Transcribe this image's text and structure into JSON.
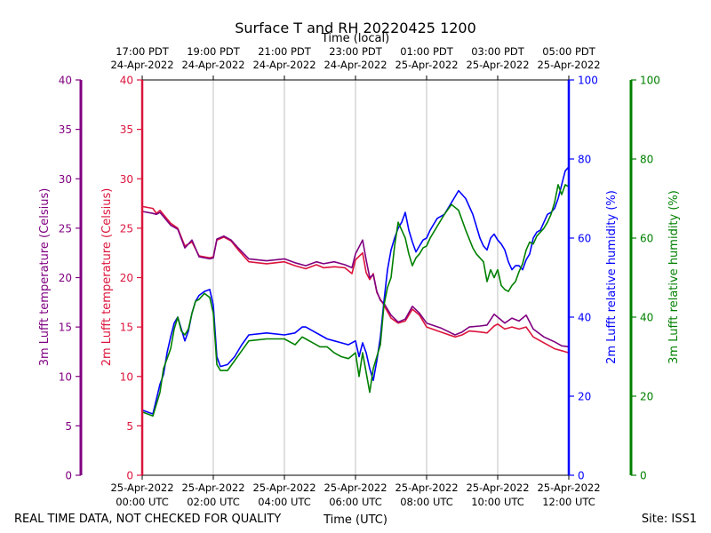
{
  "chart_data": {
    "type": "line",
    "title": "Surface T and RH 20220425 1200",
    "top_axis_title": "Time (local)",
    "xlabel": "Time (UTC)",
    "footer_left": "REAL TIME DATA, NOT CHECKED FOR QUALITY",
    "footer_right": "Site: ISS1",
    "x_unit": "hours since 25-Apr-2022 00:00 UTC",
    "xlim": [
      0,
      12
    ],
    "ticks_utc": [
      {
        "h": 0,
        "l1": "25-Apr-2022",
        "l2": "00:00 UTC"
      },
      {
        "h": 2,
        "l1": "25-Apr-2022",
        "l2": "02:00 UTC"
      },
      {
        "h": 4,
        "l1": "25-Apr-2022",
        "l2": "04:00 UTC"
      },
      {
        "h": 6,
        "l1": "25-Apr-2022",
        "l2": "06:00 UTC"
      },
      {
        "h": 8,
        "l1": "25-Apr-2022",
        "l2": "08:00 UTC"
      },
      {
        "h": 10,
        "l1": "25-Apr-2022",
        "l2": "10:00 UTC"
      },
      {
        "h": 12,
        "l1": "25-Apr-2022",
        "l2": "12:00 UTC"
      }
    ],
    "ticks_local": [
      {
        "h": 0,
        "l1": "17:00 PDT",
        "l2": "24-Apr-2022"
      },
      {
        "h": 2,
        "l1": "19:00 PDT",
        "l2": "24-Apr-2022"
      },
      {
        "h": 4,
        "l1": "21:00 PDT",
        "l2": "24-Apr-2022"
      },
      {
        "h": 6,
        "l1": "23:00 PDT",
        "l2": "24-Apr-2022"
      },
      {
        "h": 8,
        "l1": "01:00 PDT",
        "l2": "25-Apr-2022"
      },
      {
        "h": 10,
        "l1": "03:00 PDT",
        "l2": "25-Apr-2022"
      },
      {
        "h": 12,
        "l1": "05:00 PDT",
        "l2": "25-Apr-2022"
      }
    ],
    "axes": {
      "t3m": {
        "label": "3m Lufft temperature (Celsius)",
        "ylim": [
          0,
          40
        ],
        "ticks": [
          0,
          5,
          10,
          15,
          20,
          25,
          30,
          35,
          40
        ],
        "color": "#800080"
      },
      "t2m": {
        "label": "2m Lufft temperature (Celsius)",
        "ylim": [
          0,
          40
        ],
        "ticks": [
          0,
          5,
          10,
          15,
          20,
          25,
          30,
          35,
          40
        ],
        "color": "#dc143c"
      },
      "rh2m": {
        "label": "2m Lufft relative humidity (%)",
        "ylim": [
          0,
          100
        ],
        "ticks": [
          0,
          20,
          40,
          60,
          80,
          100
        ],
        "color": "#0000ff"
      },
      "rh3m": {
        "label": "3m Lufft relative humidity (%)",
        "ylim": [
          0,
          100
        ],
        "ticks": [
          0,
          20,
          40,
          60,
          80,
          100
        ],
        "color": "#008000"
      }
    },
    "series": [
      {
        "name": "2m Lufft temperature",
        "axis": "t2m",
        "color": "#dc143c",
        "x": [
          0,
          0.3,
          0.4,
          0.5,
          0.8,
          1.0,
          1.2,
          1.4,
          1.6,
          1.9,
          2.0,
          2.1,
          2.3,
          2.5,
          2.7,
          3.0,
          3.5,
          4.0,
          4.3,
          4.6,
          4.9,
          5.1,
          5.4,
          5.7,
          5.9,
          6.0,
          6.2,
          6.3,
          6.4,
          6.5,
          6.6,
          6.7,
          6.8,
          7.0,
          7.2,
          7.4,
          7.6,
          7.8,
          8.0,
          8.4,
          8.8,
          9.0,
          9.2,
          9.5,
          9.7,
          9.9,
          10.0,
          10.2,
          10.4,
          10.6,
          10.8,
          11.0,
          11.3,
          11.6,
          11.8,
          12.0
        ],
        "values": [
          27.2,
          27.0,
          26.5,
          26.8,
          25.5,
          25.0,
          23.2,
          23.6,
          22.2,
          22.0,
          22.1,
          23.8,
          24.1,
          23.7,
          22.8,
          21.6,
          21.4,
          21.6,
          21.2,
          20.9,
          21.3,
          21.0,
          21.1,
          21.0,
          20.4,
          21.8,
          22.5,
          20.5,
          19.8,
          20.4,
          18.5,
          17.8,
          17.2,
          15.9,
          15.4,
          15.6,
          16.8,
          16.2,
          15.0,
          14.5,
          14.0,
          14.2,
          14.6,
          14.5,
          14.4,
          15.1,
          15.3,
          14.8,
          15.0,
          14.8,
          15.0,
          14.0,
          13.4,
          12.8,
          12.6,
          12.4
        ]
      },
      {
        "name": "3m Lufft temperature",
        "axis": "t3m",
        "color": "#800080",
        "x": [
          0,
          0.3,
          0.4,
          0.5,
          0.8,
          1.0,
          1.2,
          1.4,
          1.6,
          1.9,
          2.0,
          2.1,
          2.3,
          2.5,
          2.7,
          3.0,
          3.5,
          4.0,
          4.3,
          4.6,
          4.9,
          5.1,
          5.4,
          5.7,
          5.9,
          6.0,
          6.2,
          6.3,
          6.4,
          6.5,
          6.6,
          6.7,
          6.8,
          7.0,
          7.2,
          7.4,
          7.6,
          7.8,
          8.0,
          8.4,
          8.8,
          9.0,
          9.2,
          9.5,
          9.7,
          9.9,
          10.0,
          10.2,
          10.4,
          10.6,
          10.8,
          11.0,
          11.3,
          11.6,
          11.8,
          12.0
        ],
        "values": [
          26.7,
          26.5,
          26.4,
          26.6,
          25.3,
          24.9,
          23.0,
          23.8,
          22.1,
          21.9,
          22.0,
          23.9,
          24.2,
          23.8,
          23.0,
          21.9,
          21.7,
          21.9,
          21.5,
          21.2,
          21.6,
          21.4,
          21.6,
          21.3,
          21.0,
          22.4,
          23.8,
          21.8,
          20.0,
          20.3,
          18.6,
          17.7,
          17.4,
          16.2,
          15.5,
          15.8,
          17.1,
          16.4,
          15.4,
          14.9,
          14.2,
          14.5,
          15.0,
          15.1,
          15.2,
          16.3,
          16.0,
          15.4,
          15.9,
          15.6,
          16.2,
          14.8,
          14.0,
          13.5,
          13.1,
          13.0
        ]
      },
      {
        "name": "2m Lufft relative humidity",
        "axis": "rh2m",
        "color": "#0000ff",
        "x": [
          0,
          0.3,
          0.5,
          0.6,
          0.7,
          0.8,
          0.9,
          1.0,
          1.1,
          1.2,
          1.3,
          1.4,
          1.5,
          1.6,
          1.75,
          1.9,
          2.0,
          2.1,
          2.2,
          2.4,
          2.6,
          2.8,
          3.0,
          3.5,
          4.0,
          4.3,
          4.5,
          4.6,
          4.8,
          5.0,
          5.2,
          5.4,
          5.6,
          5.8,
          6.0,
          6.1,
          6.2,
          6.3,
          6.4,
          6.5,
          6.6,
          6.7,
          6.8,
          6.9,
          7.0,
          7.1,
          7.2,
          7.3,
          7.4,
          7.5,
          7.6,
          7.7,
          7.8,
          7.9,
          8.0,
          8.1,
          8.2,
          8.3,
          8.5,
          8.7,
          8.9,
          9.1,
          9.3,
          9.4,
          9.5,
          9.6,
          9.7,
          9.8,
          9.9,
          10.0,
          10.1,
          10.2,
          10.3,
          10.4,
          10.5,
          10.6,
          10.7,
          10.8,
          10.9,
          11.0,
          11.1,
          11.2,
          11.3,
          11.4,
          11.5,
          11.6,
          11.7,
          11.8,
          11.9,
          12.0
        ],
        "values": [
          16.5,
          15.5,
          23.0,
          25.5,
          31.0,
          35.0,
          38.5,
          40.0,
          37.0,
          34.0,
          36.5,
          41.0,
          44.0,
          45.5,
          46.5,
          47.0,
          43.0,
          30.0,
          27.5,
          28.0,
          30.0,
          33.0,
          35.5,
          36.0,
          35.5,
          36.0,
          37.5,
          37.5,
          36.5,
          35.5,
          34.5,
          34.0,
          33.5,
          33.0,
          34.0,
          30.0,
          33.5,
          31.0,
          27.0,
          24.0,
          29.0,
          35.0,
          44.0,
          52.0,
          57.0,
          60.0,
          62.5,
          64.0,
          66.5,
          62.0,
          59.0,
          56.5,
          58.0,
          59.5,
          60.0,
          62.0,
          63.5,
          65.0,
          66.0,
          69.0,
          72.0,
          70.0,
          66.0,
          63.0,
          60.0,
          58.0,
          57.0,
          60.0,
          61.0,
          59.5,
          58.5,
          57.0,
          54.0,
          52.0,
          53.0,
          53.0,
          52.0,
          54.5,
          56.0,
          60.0,
          61.5,
          62.0,
          64.0,
          66.0,
          66.5,
          67.5,
          70.0,
          73.5,
          77.0,
          78.0
        ]
      },
      {
        "name": "3m Lufft relative humidity",
        "axis": "rh3m",
        "color": "#008000",
        "x": [
          0,
          0.3,
          0.5,
          0.6,
          0.7,
          0.8,
          0.9,
          1.0,
          1.1,
          1.2,
          1.3,
          1.4,
          1.5,
          1.6,
          1.75,
          1.9,
          2.0,
          2.1,
          2.2,
          2.4,
          2.6,
          2.8,
          3.0,
          3.5,
          4.0,
          4.3,
          4.5,
          4.6,
          4.8,
          5.0,
          5.2,
          5.4,
          5.6,
          5.8,
          6.0,
          6.1,
          6.2,
          6.3,
          6.4,
          6.5,
          6.6,
          6.7,
          6.8,
          6.9,
          7.0,
          7.1,
          7.2,
          7.3,
          7.4,
          7.5,
          7.6,
          7.7,
          7.8,
          7.9,
          8.0,
          8.1,
          8.2,
          8.3,
          8.5,
          8.7,
          8.9,
          9.1,
          9.3,
          9.4,
          9.5,
          9.6,
          9.7,
          9.8,
          9.9,
          10.0,
          10.1,
          10.2,
          10.3,
          10.4,
          10.5,
          10.6,
          10.7,
          10.8,
          10.9,
          11.0,
          11.1,
          11.2,
          11.3,
          11.4,
          11.5,
          11.6,
          11.7,
          11.8,
          11.9,
          12.0
        ],
        "values": [
          16.0,
          15.0,
          21.0,
          27.0,
          29.5,
          32.0,
          37.0,
          40.0,
          36.5,
          35.5,
          37.0,
          41.0,
          44.0,
          44.5,
          46.0,
          45.0,
          41.0,
          28.0,
          26.5,
          26.5,
          29.0,
          31.5,
          34.0,
          34.5,
          34.5,
          33.0,
          35.0,
          34.5,
          33.5,
          32.5,
          32.5,
          31.0,
          30.0,
          29.5,
          31.0,
          25.0,
          31.0,
          26.0,
          21.0,
          27.0,
          30.0,
          33.0,
          43.0,
          47.5,
          50.0,
          58.0,
          64.0,
          62.0,
          60.0,
          56.0,
          53.0,
          55.0,
          56.0,
          57.5,
          58.0,
          60.0,
          61.5,
          63.0,
          66.0,
          68.5,
          67.0,
          62.0,
          57.5,
          56.0,
          55.0,
          54.0,
          49.0,
          52.0,
          50.0,
          52.0,
          48.0,
          47.0,
          46.5,
          48.0,
          49.0,
          51.5,
          53.5,
          57.0,
          59.0,
          58.5,
          60.5,
          61.5,
          62.5,
          64.0,
          66.0,
          69.0,
          73.5,
          71.0,
          73.5,
          73.0
        ]
      }
    ]
  }
}
